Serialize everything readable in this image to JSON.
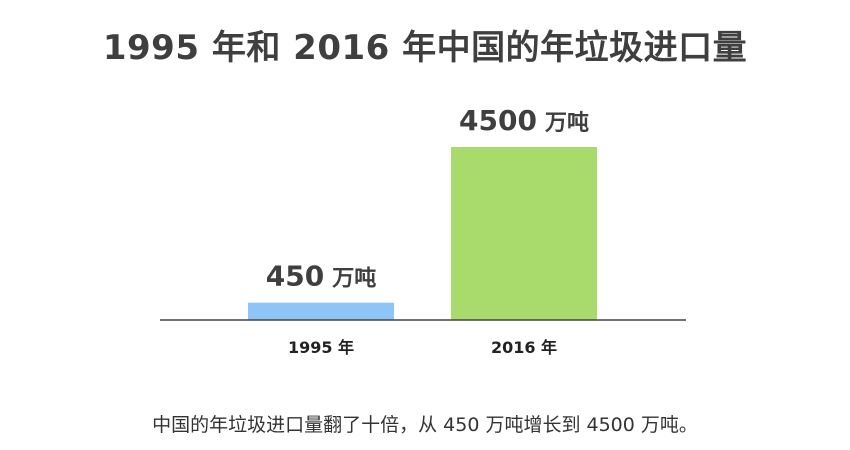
{
  "title": "1995 年和 2016 年中国的年垃圾进口量",
  "caption": "中国的年垃圾进口量翻了十倍，从 450 万吨增长到 4500 万吨。",
  "chart_data": {
    "type": "bar",
    "title": "1995 年和 2016 年中国的年垃圾进口量",
    "categories": [
      "1995 年",
      "2016 年"
    ],
    "values": [
      450,
      4500
    ],
    "value_labels": [
      {
        "number": "450",
        "unit": "万吨"
      },
      {
        "number": "4500",
        "unit": "万吨"
      }
    ],
    "colors": [
      "#8ec5f7",
      "#a8db6b"
    ],
    "axis_color": "#444444",
    "label_color": "#3f3f3f",
    "xlabel": "",
    "ylabel": "",
    "grid": false
  }
}
